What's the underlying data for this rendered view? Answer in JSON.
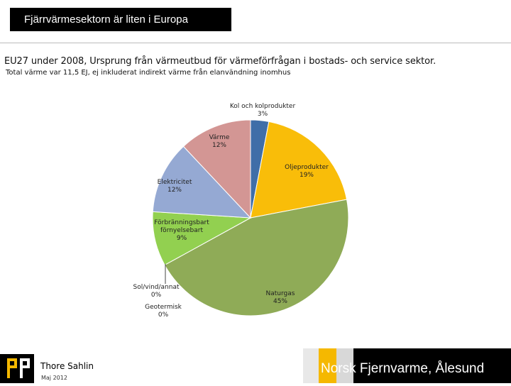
{
  "header": {
    "title": "Fjärrvärmesektorn är liten i Europa"
  },
  "subtitle": "EU27 under 2008, Ursprung från värmeutbud för värmeförfrågan i bostads- och service sektor.",
  "note": "Total värme var 11,5 EJ, ej inkluderat indirekt värme från elanvändning inomhus",
  "chart_data": {
    "type": "pie",
    "title": "",
    "slices": [
      {
        "name": "Kol och kolprodukter",
        "value": 3,
        "label": "3%",
        "color": "#3f6ea8"
      },
      {
        "name": "Oljeprodukter",
        "value": 19,
        "label": "19%",
        "color": "#f9bd09"
      },
      {
        "name": "Naturgas",
        "value": 45,
        "label": "45%",
        "color": "#8fab57"
      },
      {
        "name": "Sol/vind/annat",
        "value": 0,
        "label": "0%",
        "color": "#6b8f3a"
      },
      {
        "name": "Geotermisk",
        "value": 0,
        "label": "0%",
        "color": "#444444"
      },
      {
        "name": "Förbränningsbart förnyelsebart",
        "value": 9,
        "label": "9%",
        "color": "#92d050"
      },
      {
        "name": "Elektricitet",
        "value": 12,
        "label": "12%",
        "color": "#95a9d3"
      },
      {
        "name": "Värme",
        "value": 12,
        "label": "12%",
        "color": "#d39694"
      }
    ],
    "start_angle_deg": 0,
    "direction": "clockwise",
    "legend": "none"
  },
  "footer": {
    "author": "Thore Sahlin",
    "date": "Maj 2012",
    "brand": "Norsk Fjernvarme, Ålesund",
    "brand_colors": [
      "#f5b800",
      "#000000"
    ]
  }
}
